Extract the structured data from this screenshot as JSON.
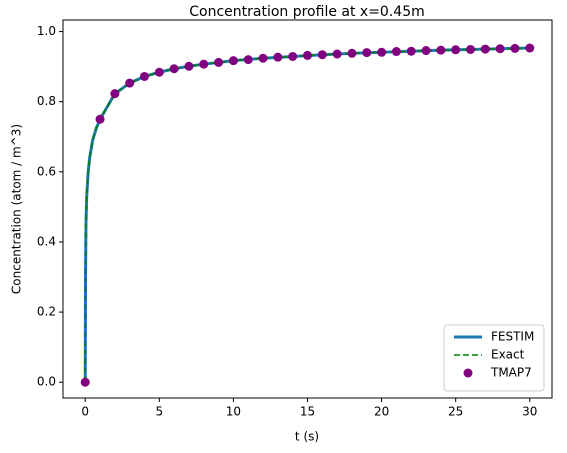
{
  "chart_data": {
    "type": "line",
    "title": "Concentration profile at x=0.45m",
    "x_label": "t (s)",
    "y_label": "Concentration (atom / m^3)",
    "xlim": [
      -1.5,
      31.5
    ],
    "ylim": [
      -0.045,
      1.033
    ],
    "xticks": [
      0,
      5,
      10,
      15,
      20,
      25,
      30
    ],
    "yticks": [
      {
        "value": 0,
        "label": "0.0"
      },
      0.2,
      0.4,
      0.6,
      0.8,
      {
        "value": 1,
        "label": "1.0"
      }
    ],
    "grid": false,
    "legend": "lower right",
    "series": [
      {
        "name": "FESTIM",
        "type": "line",
        "color": "#1f77b4",
        "linewidth": 3,
        "linestyle": "solid",
        "x": [
          0,
          0.02,
          0.05,
          0.1,
          0.2,
          0.3,
          0.5,
          0.75,
          1,
          2,
          3,
          4,
          5,
          6,
          7,
          8,
          9,
          10,
          12,
          14,
          16,
          18,
          20,
          22,
          24,
          26,
          28,
          30
        ],
        "values": [
          0,
          0.3,
          0.45,
          0.53,
          0.6,
          0.64,
          0.69,
          0.725,
          0.75,
          0.823,
          0.853,
          0.872,
          0.884,
          0.894,
          0.901,
          0.907,
          0.912,
          0.917,
          0.924,
          0.929,
          0.934,
          0.938,
          0.941,
          0.944,
          0.947,
          0.949,
          0.951,
          0.953
        ]
      },
      {
        "name": "Exact",
        "type": "line",
        "color": "#008000",
        "linewidth": 1.5,
        "linestyle": "dashed",
        "x": [
          0,
          0.02,
          0.05,
          0.1,
          0.2,
          0.3,
          0.5,
          0.75,
          1,
          2,
          3,
          4,
          5,
          6,
          7,
          8,
          9,
          10,
          12,
          14,
          16,
          18,
          20,
          22,
          24,
          26,
          28,
          30
        ],
        "values": [
          0,
          0.3,
          0.45,
          0.53,
          0.6,
          0.64,
          0.69,
          0.725,
          0.75,
          0.823,
          0.853,
          0.872,
          0.884,
          0.894,
          0.901,
          0.907,
          0.912,
          0.917,
          0.924,
          0.929,
          0.934,
          0.938,
          0.941,
          0.944,
          0.947,
          0.949,
          0.951,
          0.953
        ]
      },
      {
        "name": "TMAP7",
        "type": "scatter",
        "color": "#800080",
        "x": [
          0,
          1,
          2,
          3,
          4,
          5,
          6,
          7,
          8,
          9,
          10,
          11,
          12,
          13,
          14,
          15,
          16,
          17,
          18,
          19,
          20,
          21,
          22,
          23,
          24,
          25,
          26,
          27,
          28,
          29,
          30
        ],
        "values": [
          0,
          0.75,
          0.823,
          0.853,
          0.872,
          0.884,
          0.894,
          0.901,
          0.907,
          0.912,
          0.917,
          0.92,
          0.924,
          0.927,
          0.929,
          0.932,
          0.934,
          0.936,
          0.938,
          0.94,
          0.941,
          0.943,
          0.944,
          0.946,
          0.947,
          0.948,
          0.949,
          0.95,
          0.951,
          0.952,
          0.953
        ]
      }
    ]
  }
}
